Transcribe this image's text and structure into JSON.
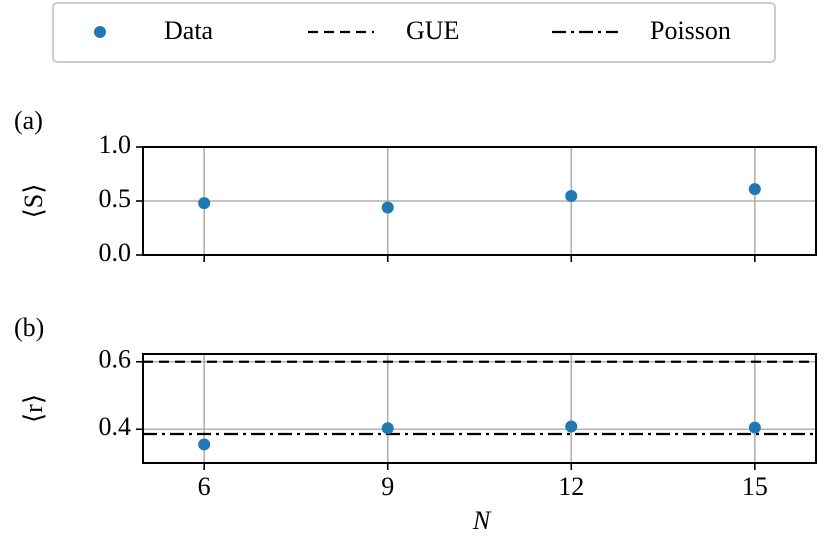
{
  "chart_data": [
    {
      "type": "scatter",
      "panel_label": "(a)",
      "ylabel": "⟨S⟩",
      "x": [
        6,
        9,
        12,
        15
      ],
      "series": [
        {
          "color": "#1f77b4",
          "values": [
            0.48,
            0.44,
            0.546,
            0.61
          ]
        }
      ],
      "xlim": [
        5,
        16
      ],
      "ylim": [
        0,
        1
      ],
      "xticks": [
        6,
        9,
        12,
        15
      ],
      "show_xticklabels": false,
      "yticks": [
        {
          "value": 0,
          "label": "0.0"
        },
        {
          "value": 0.5,
          "label": "0.5"
        },
        {
          "value": 1,
          "label": "1.0"
        }
      ],
      "grid": true
    },
    {
      "type": "scatter",
      "panel_label": "(b)",
      "ylabel": "⟨r⟩",
      "xlabel": "N",
      "x": [
        6,
        9,
        12,
        15
      ],
      "series": [
        {
          "name": "Data",
          "color": "#1f77b4",
          "values": [
            0.355,
            0.403,
            0.408,
            0.405
          ]
        }
      ],
      "hlines": [
        {
          "name": "GUE",
          "value": 0.6,
          "style": "dashed",
          "color": "#000000"
        },
        {
          "name": "Poisson",
          "value": 0.386,
          "style": "dashdot",
          "color": "#000000"
        }
      ],
      "xlim": [
        5,
        16
      ],
      "ylim": [
        0.3,
        0.623
      ],
      "xticks": [
        6,
        9,
        12,
        15
      ],
      "show_xticklabels": true,
      "yticks": [
        0.4,
        0.6
      ],
      "grid": true
    }
  ]
}
